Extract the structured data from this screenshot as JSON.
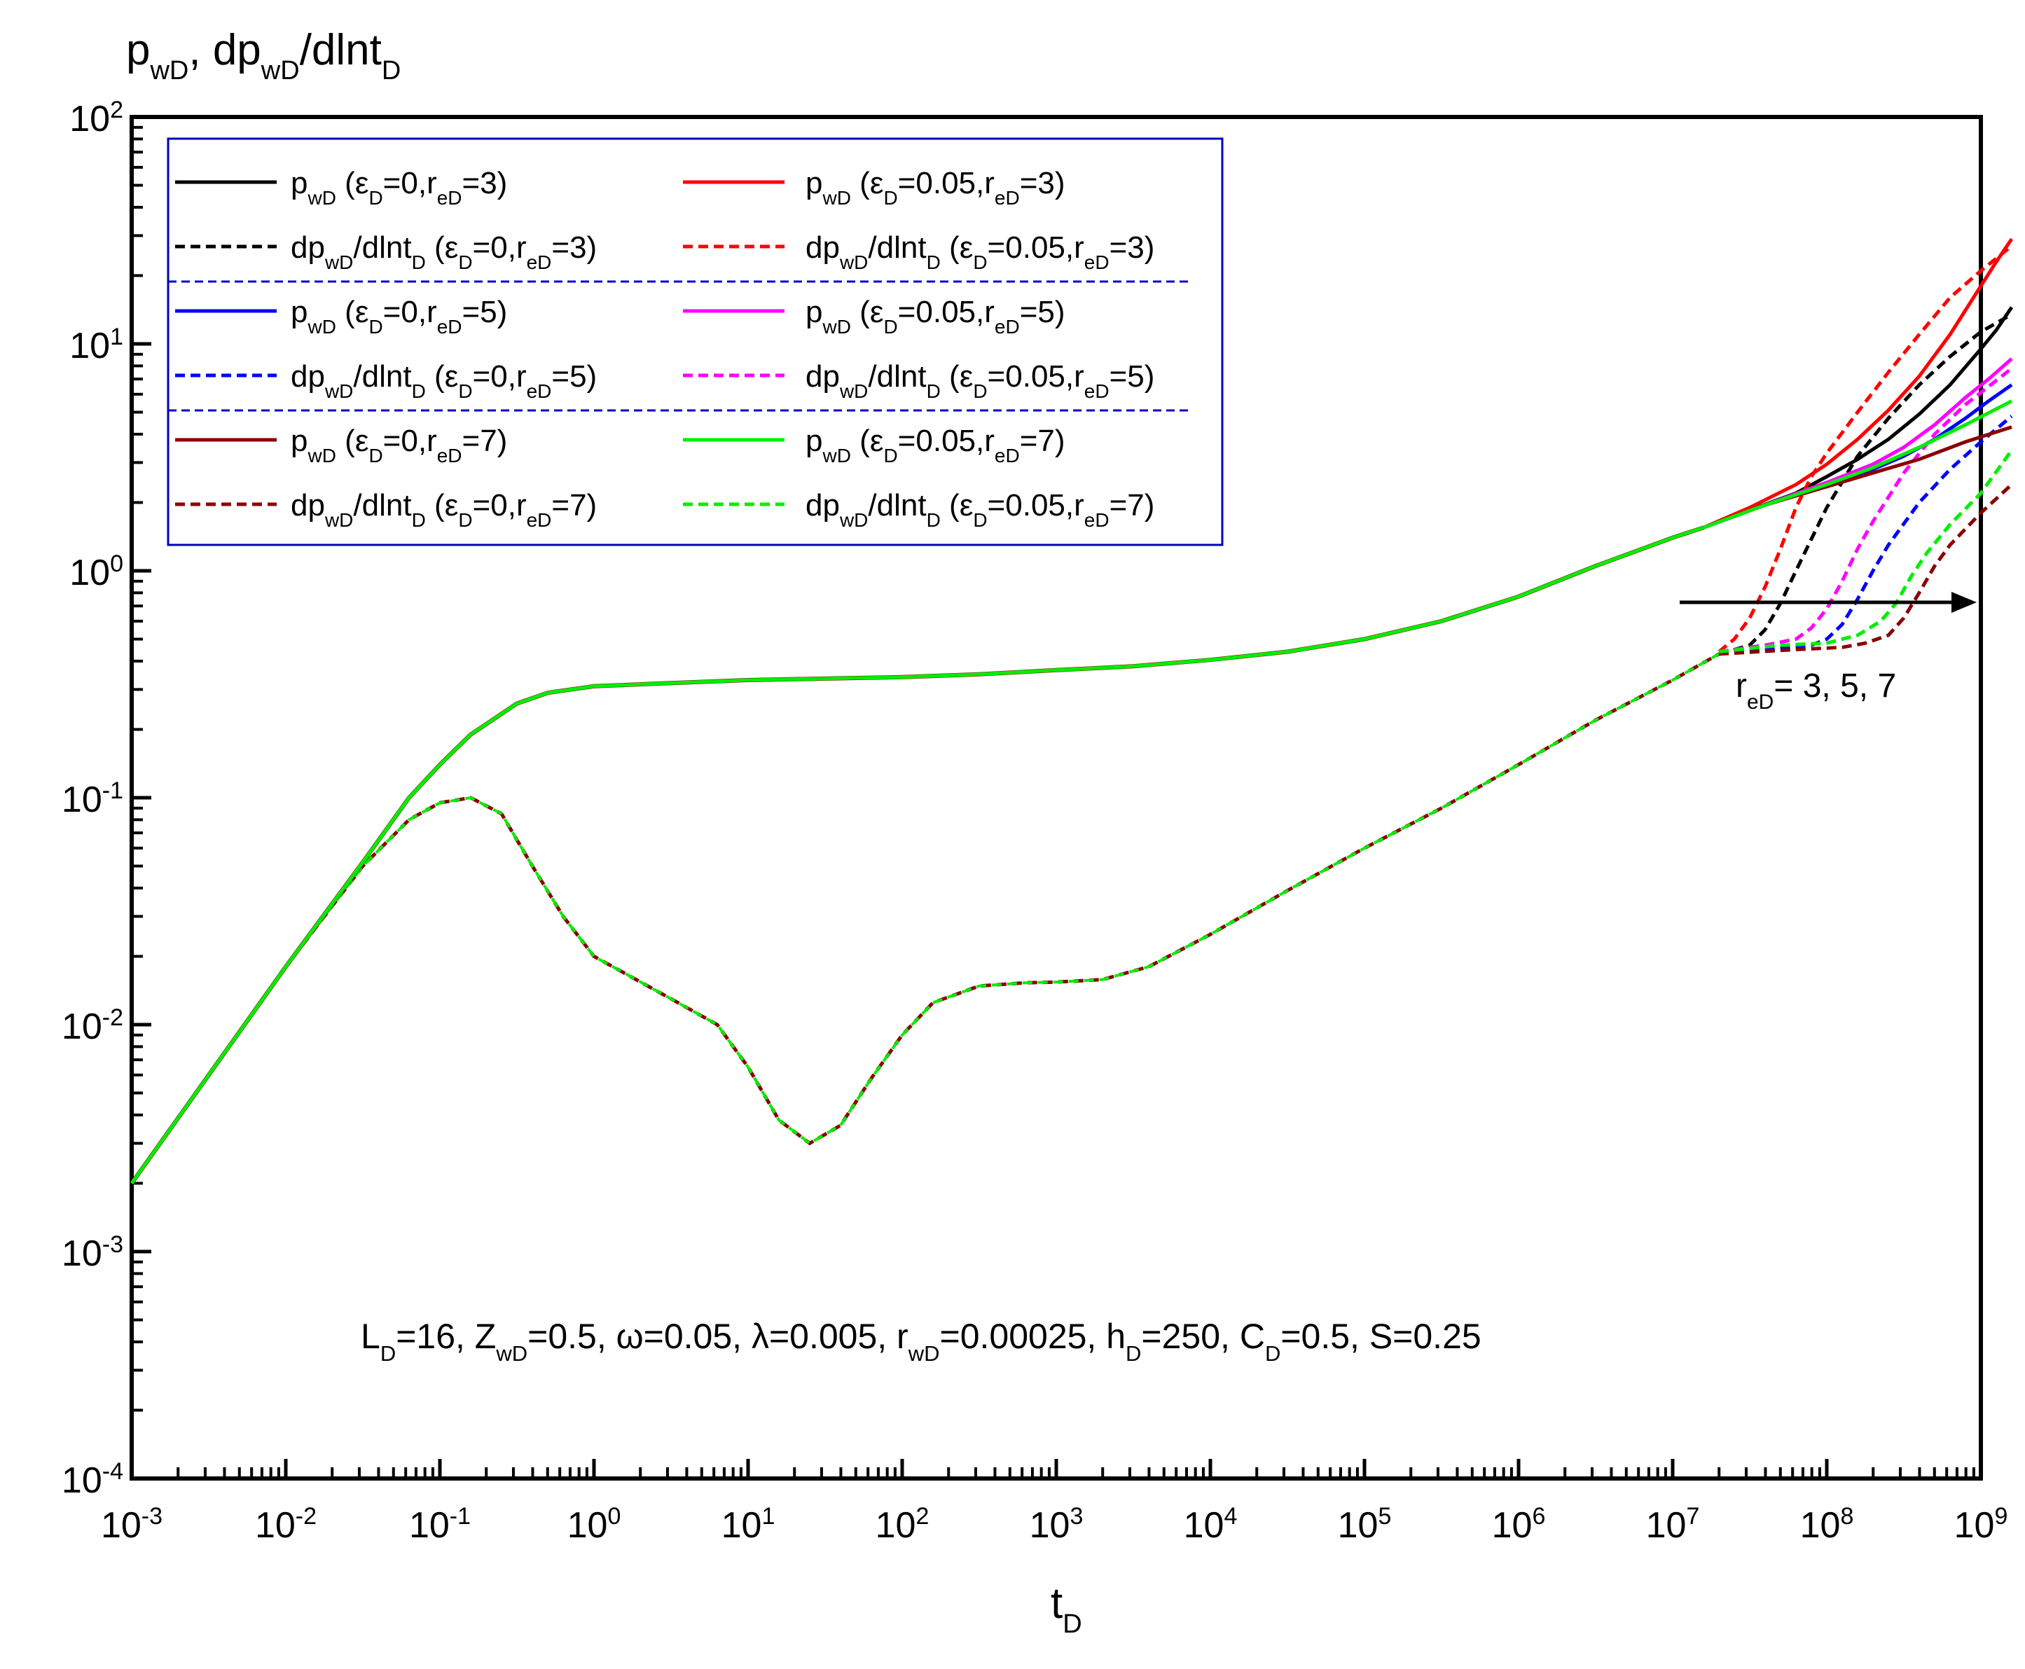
{
  "chart_data": {
    "type": "line",
    "title": "",
    "ylabel": {
      "main": "p",
      "sub1": "wD",
      "mid": ", dp",
      "sub2": "wD",
      "tail": "/dlnt",
      "sub3": "D"
    },
    "xlabel": {
      "main": "t",
      "sub": "D"
    },
    "x_scale": "log",
    "y_scale": "log",
    "xlim": [
      0.001,
      1000000000
    ],
    "ylim": [
      0.0001,
      100
    ],
    "x_ticks": [
      {
        "base": "10",
        "exp": "-3"
      },
      {
        "base": "10",
        "exp": "-2"
      },
      {
        "base": "10",
        "exp": "-1"
      },
      {
        "base": "10",
        "exp": "0"
      },
      {
        "base": "10",
        "exp": "1"
      },
      {
        "base": "10",
        "exp": "2"
      },
      {
        "base": "10",
        "exp": "3"
      },
      {
        "base": "10",
        "exp": "4"
      },
      {
        "base": "10",
        "exp": "5"
      },
      {
        "base": "10",
        "exp": "6"
      },
      {
        "base": "10",
        "exp": "7"
      },
      {
        "base": "10",
        "exp": "8"
      },
      {
        "base": "10",
        "exp": "9"
      }
    ],
    "y_ticks": [
      {
        "base": "10",
        "exp": "-4"
      },
      {
        "base": "10",
        "exp": "-3"
      },
      {
        "base": "10",
        "exp": "-2"
      },
      {
        "base": "10",
        "exp": "-1"
      },
      {
        "base": "10",
        "exp": "0"
      },
      {
        "base": "10",
        "exp": "1"
      },
      {
        "base": "10",
        "exp": "2"
      }
    ],
    "legend_position": "top-left",
    "series": [
      {
        "name": "p_wD (eps_D=0, r_eD=3)",
        "legend": {
          "a": "p",
          "b": "wD",
          "c": " (ε",
          "d": "D",
          "e": "=0,r",
          "f": "eD",
          "g": "=3)"
        },
        "color": "#000000",
        "dash": false,
        "points": [
          [
            7.2,
            1.55
          ],
          [
            7.5,
            1.85
          ],
          [
            7.8,
            2.2
          ],
          [
            8.0,
            2.6
          ],
          [
            8.2,
            3.1
          ],
          [
            8.4,
            3.8
          ],
          [
            8.6,
            4.9
          ],
          [
            8.8,
            6.6
          ],
          [
            9.0,
            9.5
          ],
          [
            9.1,
            11.5
          ],
          [
            9.2,
            14.5
          ]
        ]
      },
      {
        "name": "dp_wD/dlnt_D (eps_D=0, r_eD=3)",
        "legend": {
          "a": "dp",
          "b": "wD",
          "c": "/dlnt",
          "d": "D",
          "e": " (ε",
          "f": "D",
          "g": "=0,r",
          "h": "eD",
          "i": "=3)"
        },
        "color": "#000000",
        "dash": true,
        "points": [
          [
            7.3,
            0.43
          ],
          [
            7.5,
            0.47
          ],
          [
            7.6,
            0.55
          ],
          [
            7.7,
            0.72
          ],
          [
            7.8,
            1.0
          ],
          [
            7.9,
            1.38
          ],
          [
            8.0,
            1.9
          ],
          [
            8.2,
            3.2
          ],
          [
            8.4,
            4.7
          ],
          [
            8.6,
            6.6
          ],
          [
            8.8,
            8.8
          ],
          [
            9.0,
            11.3
          ],
          [
            9.2,
            13.5
          ]
        ]
      },
      {
        "name": "p_wD (eps_D=0.05, r_eD=3)",
        "legend": {
          "a": "p",
          "b": "wD",
          "c": " (ε",
          "d": "D",
          "e": "=0.05,r",
          "f": "eD",
          "g": "=3)"
        },
        "color": "#ff0000",
        "dash": false,
        "points": [
          [
            7.2,
            1.55
          ],
          [
            7.5,
            1.9
          ],
          [
            7.8,
            2.4
          ],
          [
            8.0,
            2.95
          ],
          [
            8.2,
            3.8
          ],
          [
            8.4,
            5.1
          ],
          [
            8.6,
            7.2
          ],
          [
            8.8,
            11.0
          ],
          [
            9.0,
            18.0
          ],
          [
            9.1,
            23.0
          ],
          [
            9.2,
            29.0
          ]
        ]
      },
      {
        "name": "dp_wD/dlnt_D (eps_D=0.05, r_eD=3)",
        "legend": {
          "a": "dp",
          "b": "wD",
          "c": "/dlnt",
          "d": "D",
          "e": " (ε",
          "f": "D",
          "g": "=0.05,r",
          "h": "eD",
          "i": "=3)"
        },
        "color": "#ff0000",
        "dash": true,
        "points": [
          [
            7.3,
            0.44
          ],
          [
            7.4,
            0.5
          ],
          [
            7.5,
            0.62
          ],
          [
            7.6,
            0.85
          ],
          [
            7.7,
            1.25
          ],
          [
            7.8,
            1.9
          ],
          [
            7.9,
            2.6
          ],
          [
            8.0,
            3.3
          ],
          [
            8.2,
            5.0
          ],
          [
            8.4,
            7.5
          ],
          [
            8.6,
            11.0
          ],
          [
            8.8,
            16.0
          ],
          [
            9.0,
            21.0
          ],
          [
            9.2,
            27.0
          ]
        ]
      },
      {
        "name": "p_wD (eps_D=0, r_eD=5)",
        "legend": {
          "a": "p",
          "b": "wD",
          "c": " (ε",
          "d": "D",
          "e": "=0,r",
          "f": "eD",
          "g": "=5)"
        },
        "color": "#0000ff",
        "dash": false,
        "points": [
          [
            7.2,
            1.55
          ],
          [
            7.6,
            1.95
          ],
          [
            8.0,
            2.4
          ],
          [
            8.3,
            2.8
          ],
          [
            8.5,
            3.2
          ],
          [
            8.7,
            3.8
          ],
          [
            8.9,
            4.7
          ],
          [
            9.05,
            5.6
          ],
          [
            9.2,
            6.6
          ]
        ]
      },
      {
        "name": "dp_wD/dlnt_D (eps_D=0, r_eD=5)",
        "legend": {
          "a": "dp",
          "b": "wD",
          "c": "/dlnt",
          "d": "D",
          "e": " (ε",
          "f": "D",
          "g": "=0,r",
          "h": "eD",
          "i": "=5)"
        },
        "color": "#0000ff",
        "dash": true,
        "points": [
          [
            7.3,
            0.43
          ],
          [
            7.6,
            0.45
          ],
          [
            7.9,
            0.47
          ],
          [
            8.0,
            0.5
          ],
          [
            8.1,
            0.58
          ],
          [
            8.2,
            0.75
          ],
          [
            8.3,
            1.0
          ],
          [
            8.4,
            1.3
          ],
          [
            8.6,
            2.0
          ],
          [
            8.8,
            2.8
          ],
          [
            9.0,
            3.7
          ],
          [
            9.2,
            4.8
          ]
        ]
      },
      {
        "name": "p_wD (eps_D=0.05, r_eD=5)",
        "legend": {
          "a": "p",
          "b": "wD",
          "c": " (ε",
          "d": "D",
          "e": "=0.05,r",
          "f": "eD",
          "g": "=5)"
        },
        "color": "#ff00ff",
        "dash": false,
        "points": [
          [
            7.2,
            1.55
          ],
          [
            7.6,
            1.95
          ],
          [
            8.0,
            2.45
          ],
          [
            8.3,
            2.95
          ],
          [
            8.5,
            3.5
          ],
          [
            8.7,
            4.4
          ],
          [
            8.9,
            5.8
          ],
          [
            9.05,
            7.0
          ],
          [
            9.2,
            8.6
          ]
        ]
      },
      {
        "name": "dp_wD/dlnt_D (eps_D=0.05, r_eD=5)",
        "legend": {
          "a": "dp",
          "b": "wD",
          "c": "/dlnt",
          "d": "D",
          "e": " (ε",
          "f": "D",
          "g": "=0.05,r",
          "h": "eD",
          "i": "=5)"
        },
        "color": "#ff00ff",
        "dash": true,
        "points": [
          [
            7.3,
            0.44
          ],
          [
            7.6,
            0.47
          ],
          [
            7.8,
            0.5
          ],
          [
            7.9,
            0.56
          ],
          [
            8.0,
            0.68
          ],
          [
            8.1,
            0.9
          ],
          [
            8.2,
            1.25
          ],
          [
            8.3,
            1.65
          ],
          [
            8.5,
            2.7
          ],
          [
            8.7,
            4.0
          ],
          [
            8.9,
            5.4
          ],
          [
            9.2,
            7.8
          ]
        ]
      },
      {
        "name": "p_wD (eps_D=0, r_eD=7)",
        "legend": {
          "a": "p",
          "b": "wD",
          "c": " (ε",
          "d": "D",
          "e": "=0,r",
          "f": "eD",
          "g": "=7)"
        },
        "color": "#8b0000",
        "dash": false,
        "points": [
          [
            7.2,
            1.55
          ],
          [
            7.6,
            1.95
          ],
          [
            8.0,
            2.35
          ],
          [
            8.3,
            2.7
          ],
          [
            8.6,
            3.1
          ],
          [
            8.9,
            3.7
          ],
          [
            9.2,
            4.3
          ]
        ]
      },
      {
        "name": "dp_wD/dlnt_D (eps_D=0, r_eD=7)",
        "legend": {
          "a": "dp",
          "b": "wD",
          "c": "/dlnt",
          "d": "D",
          "e": " (ε",
          "f": "D",
          "g": "=0,r",
          "h": "eD",
          "i": "=7)"
        },
        "color": "#8b0000",
        "dash": true,
        "points": [
          [
            7.3,
            0.43
          ],
          [
            7.8,
            0.45
          ],
          [
            8.1,
            0.46
          ],
          [
            8.25,
            0.48
          ],
          [
            8.4,
            0.52
          ],
          [
            8.5,
            0.62
          ],
          [
            8.6,
            0.8
          ],
          [
            8.7,
            1.05
          ],
          [
            8.8,
            1.3
          ],
          [
            9.0,
            1.8
          ],
          [
            9.2,
            2.4
          ]
        ]
      },
      {
        "name": "p_wD (eps_D=0.05, r_eD=7)",
        "legend": {
          "a": "p",
          "b": "wD",
          "c": " (ε",
          "d": "D",
          "e": "=0.05,r",
          "f": "eD",
          "g": "=7)"
        },
        "color": "#00ee00",
        "dash": false,
        "points": [
          [
            7.2,
            1.55
          ],
          [
            7.6,
            1.95
          ],
          [
            8.0,
            2.4
          ],
          [
            8.3,
            2.85
          ],
          [
            8.6,
            3.5
          ],
          [
            8.9,
            4.4
          ],
          [
            9.2,
            5.6
          ]
        ]
      },
      {
        "name": "dp_wD/dlnt_D (eps_D=0.05, r_eD=7)",
        "legend": {
          "a": "dp",
          "b": "wD",
          "c": "/dlnt",
          "d": "D",
          "e": " (ε",
          "f": "D",
          "g": "=0.05,r",
          "h": "eD",
          "i": "=7)"
        },
        "color": "#00ee00",
        "dash": true,
        "points": [
          [
            7.3,
            0.44
          ],
          [
            7.7,
            0.47
          ],
          [
            8.0,
            0.48
          ],
          [
            8.2,
            0.52
          ],
          [
            8.35,
            0.6
          ],
          [
            8.45,
            0.72
          ],
          [
            8.55,
            0.95
          ],
          [
            8.65,
            1.2
          ],
          [
            8.8,
            1.6
          ],
          [
            9.0,
            2.2
          ],
          [
            9.2,
            3.4
          ]
        ]
      }
    ],
    "common_curves": {
      "pressure": [
        [
          -3,
          0.002
        ],
        [
          -2.5,
          0.006
        ],
        [
          -2,
          0.018
        ],
        [
          -1.5,
          0.052
        ],
        [
          -1.2,
          0.1
        ],
        [
          -1,
          0.14
        ],
        [
          -0.8,
          0.19
        ],
        [
          -0.5,
          0.26
        ],
        [
          -0.3,
          0.29
        ],
        [
          0,
          0.31
        ],
        [
          0.5,
          0.32
        ],
        [
          1,
          0.33
        ],
        [
          1.5,
          0.335
        ],
        [
          2,
          0.34
        ],
        [
          2.5,
          0.35
        ],
        [
          3,
          0.365
        ],
        [
          3.5,
          0.38
        ],
        [
          4,
          0.405
        ],
        [
          4.5,
          0.44
        ],
        [
          5,
          0.5
        ],
        [
          5.5,
          0.6
        ],
        [
          6,
          0.77
        ],
        [
          6.5,
          1.05
        ],
        [
          7,
          1.4
        ],
        [
          7.2,
          1.55
        ]
      ],
      "derivative": [
        [
          -3,
          0.002
        ],
        [
          -2.5,
          0.006
        ],
        [
          -2,
          0.018
        ],
        [
          -1.5,
          0.05
        ],
        [
          -1.2,
          0.08
        ],
        [
          -1,
          0.095
        ],
        [
          -0.8,
          0.1
        ],
        [
          -0.6,
          0.085
        ],
        [
          -0.4,
          0.05
        ],
        [
          -0.2,
          0.03
        ],
        [
          0,
          0.02
        ],
        [
          0.5,
          0.013
        ],
        [
          0.8,
          0.01
        ],
        [
          1.0,
          0.0065
        ],
        [
          1.2,
          0.0038
        ],
        [
          1.4,
          0.003
        ],
        [
          1.6,
          0.0036
        ],
        [
          1.8,
          0.0058
        ],
        [
          2.0,
          0.009
        ],
        [
          2.2,
          0.0125
        ],
        [
          2.5,
          0.0148
        ],
        [
          2.8,
          0.0153
        ],
        [
          3,
          0.0154
        ],
        [
          3.3,
          0.0158
        ],
        [
          3.6,
          0.018
        ],
        [
          4,
          0.025
        ],
        [
          4.5,
          0.039
        ],
        [
          5,
          0.06
        ],
        [
          5.5,
          0.09
        ],
        [
          6,
          0.14
        ],
        [
          6.5,
          0.22
        ],
        [
          7,
          0.33
        ],
        [
          7.3,
          0.43
        ]
      ]
    },
    "legend_separators": 2,
    "annotations": [
      {
        "id": "red",
        "a": "r",
        "b": "eD",
        "c": "= 3, 5, 7"
      },
      {
        "id": "params",
        "a": "L",
        "b": "D",
        "c": "=16, Z",
        "d": "wD",
        "e": "=0.5, ω=0.05, λ=0.005, r",
        "f": "wD",
        "g": "=0.00025, h",
        "h": "D",
        "i": "=250, C",
        "j": "D",
        "k": "=0.5, S=0.25"
      }
    ]
  }
}
